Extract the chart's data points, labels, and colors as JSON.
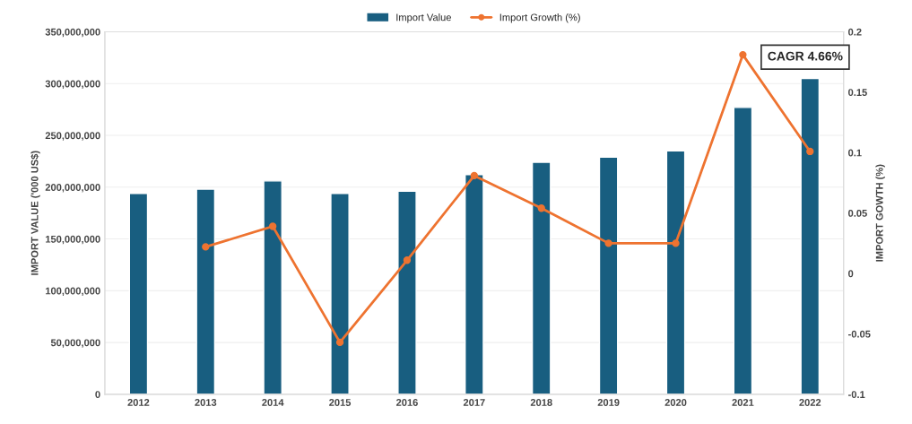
{
  "chart_data": {
    "type": "bar",
    "categories": [
      "2012",
      "2013",
      "2014",
      "2015",
      "2016",
      "2017",
      "2018",
      "2019",
      "2020",
      "2021",
      "2022"
    ],
    "series": [
      {
        "name": "Import Value",
        "color": "#185e80",
        "values": [
          194000000,
          198000000,
          206000000,
          194000000,
          196000000,
          212000000,
          224000000,
          229000000,
          235000000,
          277000000,
          305000000
        ]
      },
      {
        "name": "Import Growth (%)",
        "type": "line",
        "axis": "y2",
        "color": "#ee7330",
        "marker": "circle",
        "values": [
          null,
          0.022,
          0.039,
          -0.057,
          0.011,
          0.081,
          0.054,
          0.025,
          0.025,
          0.181,
          0.101
        ]
      }
    ],
    "ylabel": "IMPORT VALUE ('000 US$)",
    "y2label": "IMPORT GOWTH (%)",
    "ylim": [
      0,
      350000000
    ],
    "yticks": [
      {
        "value": 0,
        "label": "0"
      },
      {
        "value": 50000000,
        "label": "50,000,000"
      },
      {
        "value": 100000000,
        "label": "100,000,000"
      },
      {
        "value": 150000000,
        "label": "150,000,000"
      },
      {
        "value": 200000000,
        "label": "200,000,000"
      },
      {
        "value": 250000000,
        "label": "250,000,000"
      },
      {
        "value": 300000000,
        "label": "300,000,000"
      },
      {
        "value": 350000000,
        "label": "350,000,000"
      }
    ],
    "y2lim": [
      -0.1,
      0.2
    ],
    "y2ticks": [
      -0.1,
      -0.05,
      0,
      0.05,
      0.1,
      0.15,
      0.2
    ],
    "annotations": [
      "CAGR 4.66%"
    ],
    "grid": "y",
    "legend": "top"
  }
}
